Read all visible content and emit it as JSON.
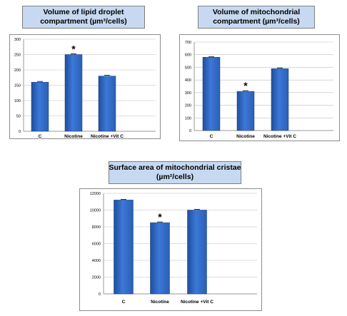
{
  "chart_data": [
    {
      "type": "bar",
      "title_line1": "Volume of lipid droplet",
      "title_line2": "compartment (µm³/cells)",
      "categories": [
        "C",
        "Nicotine",
        "Nicotine +Vit C"
      ],
      "values": [
        160,
        250,
        180
      ],
      "significance": [
        "",
        "*",
        ""
      ],
      "ylim": [
        0,
        300
      ],
      "yticks": [
        "0",
        "50",
        "100",
        "150",
        "200",
        "250",
        "300"
      ],
      "grid": true,
      "bar_color": "#3c78d8"
    },
    {
      "type": "bar",
      "title_line1": "Volume of mitochondrial",
      "title_line2": "compartment (µm³/cells)",
      "categories": [
        "C",
        "Nicotine",
        "Nicotine +Vit C"
      ],
      "values": [
        580,
        310,
        490
      ],
      "significance": [
        "",
        "*",
        ""
      ],
      "ylim": [
        0,
        700
      ],
      "yticks": [
        "0",
        "100",
        "200",
        "300",
        "400",
        "500",
        "600",
        "700"
      ],
      "grid": true,
      "bar_color": "#3c78d8"
    },
    {
      "type": "bar",
      "title_line1": "Surface area of mitochondrial cristae",
      "title_line2": "(µm²/cells)",
      "categories": [
        "C",
        "Nicotine",
        "Nicotine +Vit C"
      ],
      "values": [
        11200,
        8500,
        10000
      ],
      "significance": [
        "",
        "*",
        ""
      ],
      "ylim": [
        0,
        12000
      ],
      "yticks": [
        "0",
        "2000",
        "4000",
        "6000",
        "8000",
        "10000",
        "12000"
      ],
      "grid": true,
      "bar_color": "#3c78d8"
    }
  ]
}
